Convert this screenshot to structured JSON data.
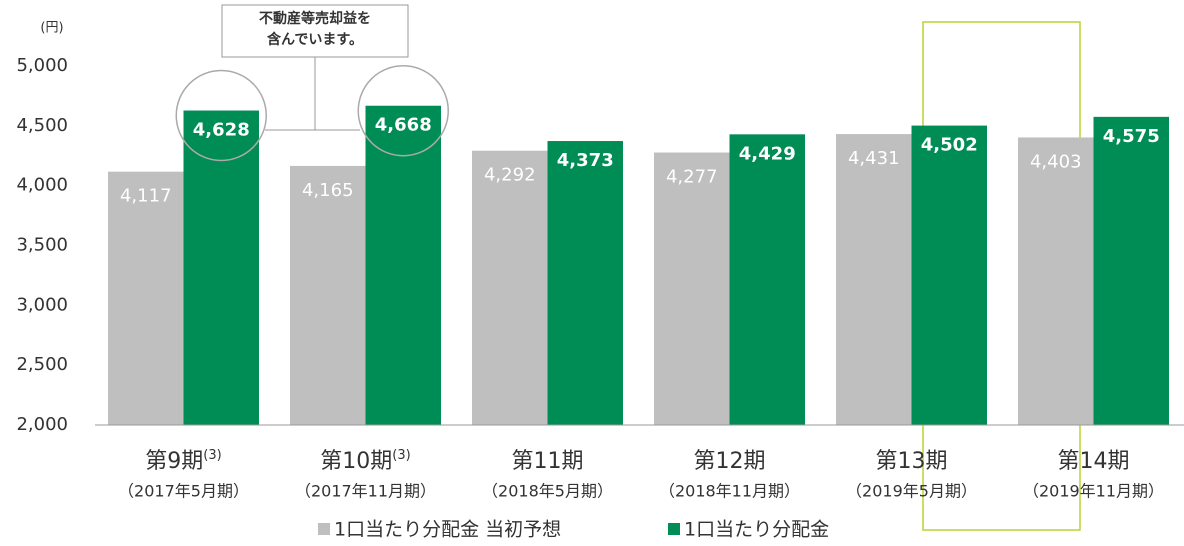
{
  "chart_data": {
    "type": "bar",
    "y_label": "(円)",
    "annotation": [
      "不動産等売却益を",
      "含んでいます。"
    ],
    "categories": [
      "第9期",
      "第10期",
      "第11期",
      "第12期",
      "第13期",
      "第14期"
    ],
    "category_notes": [
      "(3)",
      "(3)",
      null,
      null,
      null,
      null
    ],
    "category_periods": [
      "（2017年5月期）",
      "（2017年11月期）",
      "（2018年5月期）",
      "（2018年11月期）",
      "（2019年5月期）",
      "（2019年11月期）"
    ],
    "series": [
      {
        "name": "1口当たり分配金 当初予想",
        "color": "#bfbfbf",
        "values": [
          4117,
          4165,
          4292,
          4277,
          4431,
          4403
        ],
        "value_labels": [
          "4,117",
          "4,165",
          "4,292",
          "4,277",
          "4,431",
          "4,403"
        ]
      },
      {
        "name": "1口当たり分配金",
        "color": "#008c55",
        "values": [
          4628,
          4668,
          4373,
          4429,
          4502,
          4575
        ],
        "value_labels": [
          "4,628",
          "4,668",
          "4,373",
          "4,429",
          "4,502",
          "4,575"
        ]
      }
    ],
    "ylim": [
      2000,
      5000
    ],
    "yticks": [
      {
        "value": 2000,
        "label": "2,000"
      },
      {
        "value": 2500,
        "label": "2,500"
      },
      {
        "value": 3000,
        "label": "3,000"
      },
      {
        "value": 3500,
        "label": "3,500"
      },
      {
        "value": 4000,
        "label": "4,000"
      },
      {
        "value": 4500,
        "label": "4,500"
      },
      {
        "value": 5000,
        "label": "5,000"
      }
    ],
    "grid": false,
    "highlight_color": "#b8d432"
  }
}
